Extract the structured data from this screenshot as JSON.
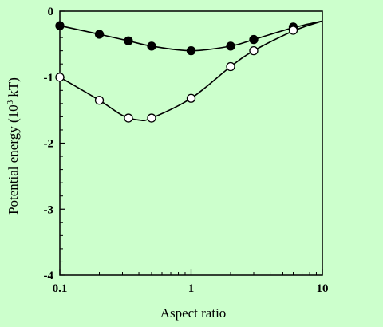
{
  "background_color": "#ccffcc",
  "chart_data": {
    "type": "line",
    "title": "",
    "xlabel": "Aspect ratio",
    "ylabel_main": "Potential energy (10",
    "ylabel_sup": "3",
    "ylabel_tail": " kT)",
    "x_scale": "log",
    "xlim": [
      0.1,
      10
    ],
    "ylim": [
      -4,
      0
    ],
    "x_ticks": [
      0.1,
      1,
      10
    ],
    "x_tick_labels": [
      "0.1",
      "1",
      "10"
    ],
    "y_ticks": [
      0,
      -1,
      -2,
      -3,
      -4
    ],
    "y_tick_labels": [
      "0",
      "-1",
      "-2",
      "-3",
      "-4"
    ],
    "grid": false,
    "legend": "none",
    "series": [
      {
        "marker": "filled-circle",
        "color": "#000000",
        "points": [
          {
            "x": 0.1,
            "y": -0.22
          },
          {
            "x": 0.2,
            "y": -0.35
          },
          {
            "x": 0.333,
            "y": -0.45
          },
          {
            "x": 0.5,
            "y": -0.53
          },
          {
            "x": 1.0,
            "y": -0.6
          },
          {
            "x": 2.0,
            "y": -0.53
          },
          {
            "x": 3.0,
            "y": -0.43
          },
          {
            "x": 6.0,
            "y": -0.24
          }
        ],
        "curve": [
          {
            "x": 0.1,
            "y": -0.22
          },
          {
            "x": 0.2,
            "y": -0.35
          },
          {
            "x": 0.333,
            "y": -0.45
          },
          {
            "x": 0.5,
            "y": -0.53
          },
          {
            "x": 1.0,
            "y": -0.6
          },
          {
            "x": 2.0,
            "y": -0.53
          },
          {
            "x": 3.0,
            "y": -0.43
          },
          {
            "x": 6.0,
            "y": -0.25
          },
          {
            "x": 10.0,
            "y": -0.15
          }
        ]
      },
      {
        "marker": "open-circle",
        "color": "#000000",
        "points": [
          {
            "x": 0.1,
            "y": -1.0
          },
          {
            "x": 0.2,
            "y": -1.35
          },
          {
            "x": 0.333,
            "y": -1.62
          },
          {
            "x": 0.5,
            "y": -1.62
          },
          {
            "x": 1.0,
            "y": -1.32
          },
          {
            "x": 2.0,
            "y": -0.84
          },
          {
            "x": 3.0,
            "y": -0.6
          },
          {
            "x": 6.0,
            "y": -0.29
          }
        ],
        "curve": [
          {
            "x": 0.1,
            "y": -1.0
          },
          {
            "x": 0.2,
            "y": -1.35
          },
          {
            "x": 0.3,
            "y": -1.58
          },
          {
            "x": 0.4,
            "y": -1.65
          },
          {
            "x": 0.5,
            "y": -1.62
          },
          {
            "x": 1.0,
            "y": -1.32
          },
          {
            "x": 2.0,
            "y": -0.84
          },
          {
            "x": 3.0,
            "y": -0.6
          },
          {
            "x": 6.0,
            "y": -0.3
          },
          {
            "x": 10.0,
            "y": -0.15
          }
        ]
      }
    ]
  }
}
